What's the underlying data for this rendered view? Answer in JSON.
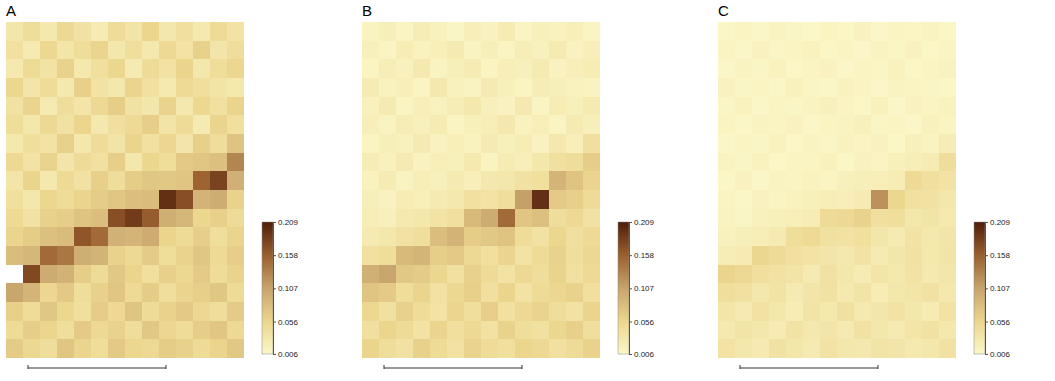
{
  "chart_data": [
    {
      "type": "heatmap",
      "title": "A",
      "colorbar": {
        "range": [
          0.006,
          0.209
        ],
        "ticks": [
          0.006,
          0.056,
          0.107,
          0.158,
          0.209
        ]
      },
      "cells": [
        [
          0.032,
          0.045,
          0.028,
          0.051,
          0.038,
          0.024,
          0.047,
          0.035,
          0.056,
          0.03,
          0.042,
          0.027,
          0.049,
          0.036
        ],
        [
          0.041,
          0.026,
          0.053,
          0.034,
          0.046,
          0.058,
          0.031,
          0.044,
          0.029,
          0.052,
          0.037,
          0.061,
          0.033,
          0.045
        ],
        [
          0.027,
          0.049,
          0.036,
          0.06,
          0.029,
          0.043,
          0.055,
          0.026,
          0.048,
          0.039,
          0.057,
          0.031,
          0.046,
          0.054
        ],
        [
          0.055,
          0.033,
          0.047,
          0.028,
          0.062,
          0.037,
          0.03,
          0.058,
          0.041,
          0.027,
          0.05,
          0.044,
          0.035,
          0.029
        ],
        [
          0.038,
          0.058,
          0.025,
          0.045,
          0.034,
          0.051,
          0.064,
          0.039,
          0.032,
          0.059,
          0.028,
          0.053,
          0.04,
          0.057
        ],
        [
          0.046,
          0.03,
          0.052,
          0.039,
          0.056,
          0.028,
          0.042,
          0.05,
          0.063,
          0.035,
          0.048,
          0.026,
          0.058,
          0.043
        ],
        [
          0.029,
          0.044,
          0.037,
          0.061,
          0.031,
          0.047,
          0.035,
          0.057,
          0.04,
          0.054,
          0.033,
          0.062,
          0.045,
          0.075
        ],
        [
          0.052,
          0.036,
          0.059,
          0.033,
          0.048,
          0.041,
          0.063,
          0.03,
          0.055,
          0.046,
          0.069,
          0.072,
          0.078,
          0.13
        ],
        [
          0.034,
          0.057,
          0.028,
          0.05,
          0.039,
          0.062,
          0.045,
          0.066,
          0.071,
          0.07,
          0.074,
          0.155,
          0.18,
          0.095
        ],
        [
          0.043,
          0.031,
          0.054,
          0.047,
          0.058,
          0.066,
          0.073,
          0.079,
          0.081,
          0.195,
          0.17,
          0.092,
          0.098,
          0.06
        ],
        [
          0.05,
          0.038,
          0.061,
          0.064,
          0.075,
          0.08,
          0.17,
          0.185,
          0.16,
          0.096,
          0.088,
          0.055,
          0.062,
          0.048
        ],
        [
          0.058,
          0.066,
          0.078,
          0.083,
          0.165,
          0.15,
          0.094,
          0.09,
          0.099,
          0.057,
          0.049,
          0.063,
          0.044,
          0.058
        ],
        [
          0.082,
          0.088,
          0.15,
          0.14,
          0.097,
          0.091,
          0.06,
          0.052,
          0.067,
          0.046,
          0.059,
          0.071,
          0.05,
          0.064
        ],
        [
          null,
          0.175,
          0.099,
          0.093,
          0.065,
          0.048,
          0.07,
          0.057,
          0.043,
          0.062,
          0.053,
          0.068,
          0.047,
          0.059
        ],
        [
          0.105,
          0.09,
          0.054,
          0.069,
          0.046,
          0.061,
          0.072,
          0.05,
          0.066,
          0.044,
          0.058,
          0.063,
          0.071,
          0.049
        ],
        [
          0.062,
          0.047,
          0.071,
          0.055,
          0.043,
          0.066,
          0.052,
          0.074,
          0.048,
          0.06,
          0.069,
          0.053,
          0.045,
          0.067
        ],
        [
          0.049,
          0.065,
          0.056,
          0.044,
          0.068,
          0.051,
          0.06,
          0.045,
          0.07,
          0.054,
          0.047,
          0.064,
          0.073,
          0.052
        ],
        [
          0.067,
          0.053,
          0.045,
          0.072,
          0.058,
          0.046,
          0.069,
          0.055,
          0.051,
          0.066,
          0.061,
          0.048,
          0.057,
          0.07
        ]
      ]
    },
    {
      "type": "heatmap",
      "title": "B",
      "colorbar": {
        "range": [
          0.006,
          0.209
        ],
        "ticks": [
          0.006,
          0.056,
          0.107,
          0.158,
          0.209
        ]
      },
      "cells": [
        [
          0.012,
          0.018,
          0.01,
          0.022,
          0.015,
          0.009,
          0.019,
          0.013,
          0.024,
          0.011,
          0.017,
          0.014,
          0.02,
          0.01
        ],
        [
          0.016,
          0.011,
          0.023,
          0.014,
          0.02,
          0.026,
          0.012,
          0.018,
          0.01,
          0.021,
          0.015,
          0.025,
          0.013,
          0.019
        ],
        [
          0.01,
          0.021,
          0.015,
          0.027,
          0.012,
          0.018,
          0.024,
          0.011,
          0.02,
          0.016,
          0.025,
          0.013,
          0.019,
          0.023
        ],
        [
          0.024,
          0.014,
          0.019,
          0.011,
          0.028,
          0.015,
          0.012,
          0.026,
          0.017,
          0.01,
          0.022,
          0.018,
          0.014,
          0.012
        ],
        [
          0.015,
          0.025,
          0.01,
          0.019,
          0.014,
          0.022,
          0.029,
          0.016,
          0.013,
          0.027,
          0.011,
          0.023,
          0.017,
          0.026
        ],
        [
          0.019,
          0.012,
          0.022,
          0.016,
          0.024,
          0.011,
          0.017,
          0.021,
          0.028,
          0.014,
          0.02,
          0.01,
          0.026,
          0.018
        ],
        [
          0.011,
          0.018,
          0.015,
          0.026,
          0.013,
          0.02,
          0.014,
          0.025,
          0.017,
          0.023,
          0.013,
          0.028,
          0.019,
          0.042
        ],
        [
          0.022,
          0.015,
          0.025,
          0.013,
          0.02,
          0.017,
          0.027,
          0.012,
          0.024,
          0.019,
          0.03,
          0.04,
          0.045,
          0.065
        ],
        [
          0.014,
          0.024,
          0.012,
          0.021,
          0.016,
          0.026,
          0.019,
          0.028,
          0.031,
          0.038,
          0.043,
          0.09,
          0.075,
          0.058
        ],
        [
          0.018,
          0.013,
          0.023,
          0.02,
          0.025,
          0.029,
          0.04,
          0.036,
          0.044,
          0.11,
          0.195,
          0.068,
          0.062,
          0.048
        ],
        [
          0.021,
          0.016,
          0.027,
          0.03,
          0.037,
          0.042,
          0.085,
          0.1,
          0.15,
          0.072,
          0.078,
          0.045,
          0.052,
          0.039
        ],
        [
          0.026,
          0.031,
          0.039,
          0.044,
          0.08,
          0.092,
          0.066,
          0.07,
          0.075,
          0.047,
          0.038,
          0.055,
          0.042,
          0.05
        ],
        [
          0.041,
          0.046,
          0.085,
          0.09,
          0.064,
          0.069,
          0.051,
          0.043,
          0.058,
          0.037,
          0.049,
          0.06,
          0.044,
          0.053
        ],
        [
          0.095,
          0.105,
          0.07,
          0.067,
          0.055,
          0.04,
          0.061,
          0.048,
          0.036,
          0.052,
          0.045,
          0.059,
          0.041,
          0.05
        ],
        [
          0.074,
          0.068,
          0.046,
          0.058,
          0.039,
          0.053,
          0.062,
          0.042,
          0.057,
          0.037,
          0.049,
          0.054,
          0.06,
          0.043
        ],
        [
          0.053,
          0.04,
          0.061,
          0.047,
          0.036,
          0.056,
          0.044,
          0.063,
          0.041,
          0.051,
          0.059,
          0.045,
          0.038,
          0.057
        ],
        [
          0.042,
          0.056,
          0.048,
          0.037,
          0.058,
          0.043,
          0.051,
          0.039,
          0.06,
          0.046,
          0.04,
          0.055,
          0.062,
          0.044
        ],
        [
          0.057,
          0.045,
          0.038,
          0.061,
          0.049,
          0.039,
          0.059,
          0.047,
          0.043,
          0.056,
          0.052,
          0.041,
          0.048,
          0.06
        ]
      ]
    },
    {
      "type": "heatmap",
      "title": "C",
      "colorbar": {
        "range": [
          0.006,
          0.209
        ],
        "ticks": [
          0.006,
          0.056,
          0.107,
          0.158,
          0.209
        ]
      },
      "cells": [
        [
          0.008,
          0.01,
          0.007,
          0.012,
          0.009,
          0.006,
          0.011,
          0.008,
          0.013,
          0.007,
          0.01,
          0.009,
          0.012,
          0.008
        ],
        [
          0.01,
          0.007,
          0.013,
          0.009,
          0.011,
          0.014,
          0.008,
          0.01,
          0.007,
          0.012,
          0.009,
          0.013,
          0.008,
          0.011
        ],
        [
          0.007,
          0.012,
          0.009,
          0.014,
          0.008,
          0.01,
          0.013,
          0.007,
          0.011,
          0.009,
          0.014,
          0.008,
          0.011,
          0.013
        ],
        [
          0.013,
          0.009,
          0.011,
          0.007,
          0.015,
          0.009,
          0.008,
          0.014,
          0.01,
          0.007,
          0.012,
          0.011,
          0.009,
          0.008
        ],
        [
          0.009,
          0.014,
          0.007,
          0.011,
          0.009,
          0.012,
          0.016,
          0.01,
          0.008,
          0.015,
          0.007,
          0.013,
          0.01,
          0.014
        ],
        [
          0.011,
          0.008,
          0.012,
          0.01,
          0.013,
          0.007,
          0.01,
          0.012,
          0.016,
          0.009,
          0.011,
          0.007,
          0.015,
          0.011
        ],
        [
          0.007,
          0.011,
          0.009,
          0.014,
          0.008,
          0.012,
          0.009,
          0.014,
          0.01,
          0.013,
          0.008,
          0.016,
          0.012,
          0.022
        ],
        [
          0.012,
          0.009,
          0.014,
          0.008,
          0.011,
          0.01,
          0.015,
          0.008,
          0.013,
          0.011,
          0.017,
          0.021,
          0.024,
          0.045
        ],
        [
          0.008,
          0.013,
          0.007,
          0.012,
          0.01,
          0.014,
          0.011,
          0.016,
          0.018,
          0.02,
          0.023,
          0.05,
          0.042,
          0.036
        ],
        [
          0.01,
          0.008,
          0.013,
          0.011,
          0.014,
          0.017,
          0.021,
          0.019,
          0.024,
          0.12,
          0.055,
          0.04,
          0.038,
          0.03
        ],
        [
          0.012,
          0.009,
          0.015,
          0.017,
          0.02,
          0.023,
          0.048,
          0.052,
          0.06,
          0.042,
          0.044,
          0.031,
          0.035,
          0.027
        ],
        [
          0.015,
          0.018,
          0.021,
          0.025,
          0.046,
          0.05,
          0.04,
          0.038,
          0.043,
          0.032,
          0.026,
          0.036,
          0.029,
          0.033
        ],
        [
          0.022,
          0.024,
          0.055,
          0.048,
          0.041,
          0.037,
          0.033,
          0.028,
          0.037,
          0.025,
          0.032,
          0.039,
          0.029,
          0.035
        ],
        [
          0.058,
          0.052,
          0.043,
          0.039,
          0.035,
          0.026,
          0.038,
          0.031,
          0.024,
          0.034,
          0.029,
          0.036,
          0.027,
          0.032
        ],
        [
          0.044,
          0.04,
          0.03,
          0.037,
          0.025,
          0.033,
          0.039,
          0.027,
          0.035,
          0.023,
          0.03,
          0.034,
          0.038,
          0.028
        ],
        [
          0.034,
          0.026,
          0.038,
          0.031,
          0.023,
          0.035,
          0.029,
          0.04,
          0.027,
          0.032,
          0.037,
          0.03,
          0.024,
          0.036
        ],
        [
          0.027,
          0.035,
          0.031,
          0.024,
          0.037,
          0.028,
          0.033,
          0.025,
          0.038,
          0.03,
          0.026,
          0.034,
          0.039,
          0.029
        ],
        [
          0.036,
          0.03,
          0.025,
          0.039,
          0.032,
          0.026,
          0.037,
          0.031,
          0.028,
          0.035,
          0.033,
          0.027,
          0.03,
          0.038
        ]
      ]
    }
  ]
}
